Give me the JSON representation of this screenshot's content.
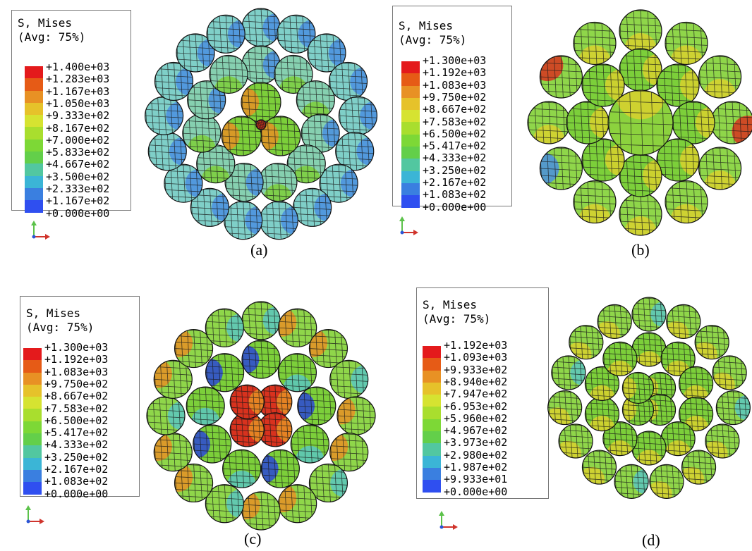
{
  "legend_title_line1": "S, Mises",
  "legend_title_line2": "(Avg: 75%)",
  "panels": [
    {
      "caption": "(a)",
      "labels": [
        "+1.400e+03",
        "+1.283e+03",
        "+1.167e+03",
        "+1.050e+03",
        "+9.333e+02",
        "+8.167e+02",
        "+7.000e+02",
        "+5.833e+02",
        "+4.667e+02",
        "+3.500e+02",
        "+2.333e+02",
        "+1.167e+02",
        "+0.000e+00"
      ]
    },
    {
      "caption": "(b)",
      "labels": [
        "+1.300e+03",
        "+1.192e+03",
        "+1.083e+03",
        "+9.750e+02",
        "+8.667e+02",
        "+7.583e+02",
        "+6.500e+02",
        "+5.417e+02",
        "+4.333e+02",
        "+3.250e+02",
        "+2.167e+02",
        "+1.083e+02",
        "+0.000e+00"
      ]
    },
    {
      "caption": "(c)",
      "labels": [
        "+1.300e+03",
        "+1.192e+03",
        "+1.083e+03",
        "+9.750e+02",
        "+8.667e+02",
        "+7.583e+02",
        "+6.500e+02",
        "+5.417e+02",
        "+4.333e+02",
        "+3.250e+02",
        "+2.167e+02",
        "+1.083e+02",
        "+0.000e+00"
      ]
    },
    {
      "caption": "(d)",
      "labels": [
        "+1.192e+03",
        "+1.093e+03",
        "+9.933e+02",
        "+8.940e+02",
        "+7.947e+02",
        "+6.953e+02",
        "+5.960e+02",
        "+4.967e+02",
        "+3.973e+02",
        "+2.980e+02",
        "+1.987e+02",
        "+9.933e+01",
        "+0.000e+00"
      ]
    }
  ],
  "axis": {
    "y": "Y",
    "x": "X"
  },
  "colors": {
    "scale": [
      "#e41a1c",
      "#e65b16",
      "#e89124",
      "#e6c22a",
      "#d6e331",
      "#a9de2e",
      "#7dd836",
      "#63cf4a",
      "#52c7a0",
      "#3bb5d6",
      "#3a7fe0",
      "#2f4ff0"
    ]
  }
}
